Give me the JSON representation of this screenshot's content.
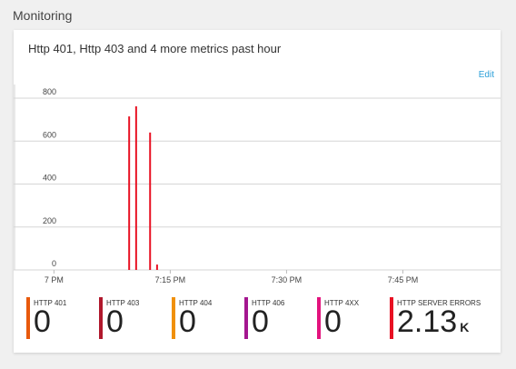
{
  "section": {
    "title": "Monitoring"
  },
  "card": {
    "title": "Http 401, Http 403 and 4 more metrics past hour",
    "edit_label": "Edit"
  },
  "tiles": [
    {
      "label": "HTTP 401",
      "value": "0",
      "unit": "",
      "color": "#e8590c"
    },
    {
      "label": "HTTP 403",
      "value": "0",
      "unit": "",
      "color": "#b0182c"
    },
    {
      "label": "HTTP 404",
      "value": "0",
      "unit": "",
      "color": "#f0900a"
    },
    {
      "label": "HTTP 406",
      "value": "0",
      "unit": "",
      "color": "#a4168f"
    },
    {
      "label": "HTTP 4XX",
      "value": "0",
      "unit": "",
      "color": "#e3137d"
    },
    {
      "label": "HTTP SERVER ERRORS",
      "value": "2.13",
      "unit": "K",
      "color": "#e81123"
    }
  ],
  "chart_data": {
    "type": "bar",
    "x_ticks": [
      "7 PM",
      "7:15 PM",
      "7:30 PM",
      "7:45 PM"
    ],
    "x_tick_minutes": [
      0,
      15,
      30,
      45
    ],
    "xlim_minutes": [
      -5.2,
      57.6
    ],
    "y_ticks": [
      "800",
      "600",
      "400",
      "200",
      "0"
    ],
    "y_tick_values": [
      800,
      600,
      400,
      200,
      0
    ],
    "ylim": [
      0,
      800
    ],
    "grid": true,
    "series": [
      {
        "color": "#e81123",
        "points": [
          {
            "x": 9.7,
            "y": 715
          },
          {
            "x": 10.6,
            "y": 762
          },
          {
            "x": 12.4,
            "y": 640
          },
          {
            "x": 13.3,
            "y": 25
          }
        ]
      }
    ]
  }
}
